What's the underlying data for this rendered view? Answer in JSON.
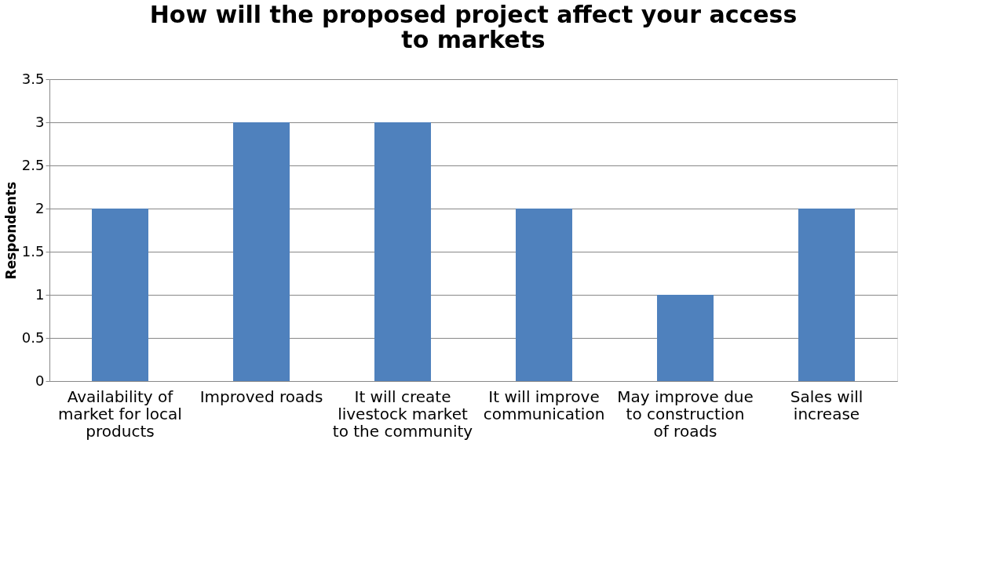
{
  "chart_data": {
    "type": "bar",
    "title": "How will the proposed project affect your access to markets",
    "ylabel": "Respondents",
    "categories": [
      "Availability of market for local products",
      "Improved roads",
      "It will create livestock market to the community",
      "It will improve communication",
      "May improve due to construction of roads",
      "Sales will increase"
    ],
    "values": [
      2,
      3,
      3,
      2,
      1,
      2
    ],
    "color": "#4f81bd",
    "ylim": [
      0,
      3.5
    ],
    "yticks": [
      0,
      0.5,
      1,
      1.5,
      2,
      2.5,
      3,
      3.5
    ],
    "grid": "y"
  }
}
